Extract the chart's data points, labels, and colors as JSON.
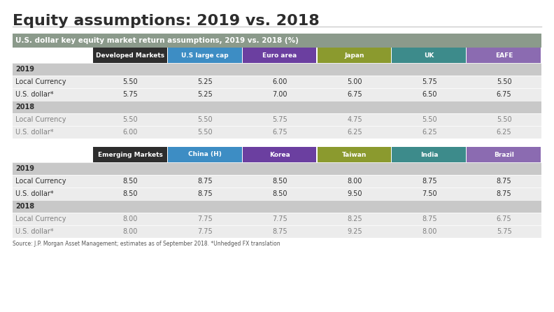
{
  "title": "Equity assumptions: 2019 vs. 2018",
  "subtitle": "U.S. dollar key equity market return assumptions, 2019 vs. 2018 (%)",
  "source": "Source: J.P. Morgan Asset Management; estimates as of September 2018. *Unhedged FX translation",
  "table1": {
    "header_cols": [
      "Developed Markets",
      "U.S large cap",
      "Euro area",
      "Japan",
      "UK",
      "EAFE"
    ],
    "header_colors": [
      "#2d2d2d",
      "#3d8dc4",
      "#6b3fa0",
      "#8b9a2e",
      "#3d8b8b",
      "#8b6bb1"
    ],
    "rows": [
      {
        "label": "2019",
        "values": null,
        "year_row": true
      },
      {
        "label": "Local Currency",
        "values": [
          "5.50",
          "5.25",
          "6.00",
          "5.00",
          "5.75",
          "5.50"
        ],
        "year_row": false
      },
      {
        "label": "U.S. dollar*",
        "values": [
          "5.75",
          "5.25",
          "7.00",
          "6.75",
          "6.50",
          "6.75"
        ],
        "year_row": false
      },
      {
        "label": "2018",
        "values": null,
        "year_row": true
      },
      {
        "label": "Local Currency",
        "values": [
          "5.50",
          "5.50",
          "5.75",
          "4.75",
          "5.50",
          "5.50"
        ],
        "year_row": false,
        "grayed": true
      },
      {
        "label": "U.S. dollar*",
        "values": [
          "6.00",
          "5.50",
          "6.75",
          "6.25",
          "6.25",
          "6.25"
        ],
        "year_row": false,
        "grayed": true
      }
    ]
  },
  "table2": {
    "header_cols": [
      "Emerging Markets",
      "China (H)",
      "Korea",
      "Taiwan",
      "India",
      "Brazil"
    ],
    "header_colors": [
      "#2d2d2d",
      "#3d8dc4",
      "#6b3fa0",
      "#8b9a2e",
      "#3d8b8b",
      "#8b6bb1"
    ],
    "rows": [
      {
        "label": "2019",
        "values": null,
        "year_row": true
      },
      {
        "label": "Local Currency",
        "values": [
          "8.50",
          "8.75",
          "8.50",
          "8.00",
          "8.75",
          "8.75"
        ],
        "year_row": false
      },
      {
        "label": "U.S. dollar*",
        "values": [
          "8.50",
          "8.75",
          "8.50",
          "9.50",
          "7.50",
          "8.75"
        ],
        "year_row": false
      },
      {
        "label": "2018",
        "values": null,
        "year_row": true
      },
      {
        "label": "Local Currency",
        "values": [
          "8.00",
          "7.75",
          "7.75",
          "8.25",
          "8.75",
          "6.75"
        ],
        "year_row": false,
        "grayed": true
      },
      {
        "label": "U.S. dollar*",
        "values": [
          "8.00",
          "7.75",
          "8.75",
          "9.25",
          "8.00",
          "5.75"
        ],
        "year_row": false,
        "grayed": true
      }
    ]
  },
  "colors": {
    "title_color": "#2d2d2d",
    "subtitle_bg": "#8b9a8b",
    "subtitle_text": "#ffffff",
    "year_row_bg": "#c8c8c8",
    "data_row_bg": "#f0f0f0",
    "data_row_bg_alt": "#e8e8e8",
    "year_label_color": "#2d2d2d",
    "data_label_color": "#2d2d2d",
    "grayed_text": "#808080",
    "black_text": "#2d2d2d"
  }
}
